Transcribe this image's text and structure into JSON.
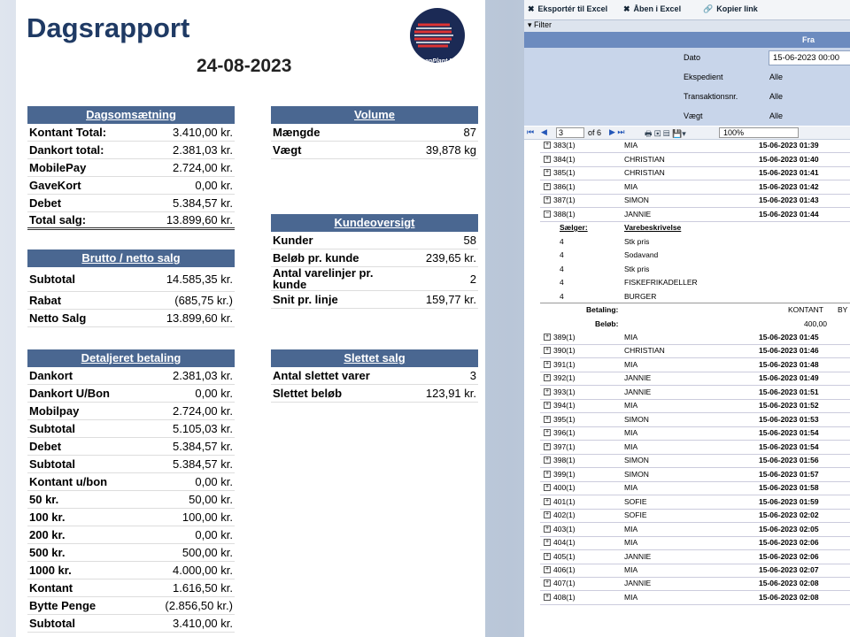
{
  "report": {
    "title": "Dagsrapport",
    "date": "24-08-2023",
    "logo_text": "ScanPlant Nd",
    "sections": [
      {
        "header": "Dagsomsætning",
        "rows": [
          [
            "Kontant Total:",
            "3.410,00 kr."
          ],
          [
            "Dankort total:",
            "2.381,03 kr."
          ],
          [
            "MobilePay",
            "2.724,00 kr."
          ],
          [
            "GaveKort",
            "0,00 kr."
          ],
          [
            "Debet",
            "5.384,57 kr."
          ],
          [
            "Total salg:",
            "13.899,60 kr."
          ]
        ]
      },
      {
        "header": "Brutto / netto salg",
        "rows": [
          [
            "Subtotal",
            "14.585,35 kr."
          ],
          [
            "Rabat",
            "(685,75 kr.)"
          ],
          [
            "Netto Salg",
            "13.899,60 kr."
          ]
        ]
      },
      {
        "header": "Detaljeret betaling",
        "rows": [
          [
            "Dankort",
            "2.381,03 kr."
          ],
          [
            "Dankort U/Bon",
            "0,00 kr."
          ],
          [
            "Mobilpay",
            "2.724,00 kr."
          ],
          [
            "Subtotal",
            "5.105,03 kr."
          ],
          [
            "Debet",
            "5.384,57 kr."
          ],
          [
            "Subtotal",
            "5.384,57 kr."
          ],
          [
            "Kontant u/bon",
            "0,00 kr."
          ],
          [
            "50 kr.",
            "50,00 kr."
          ],
          [
            "100 kr.",
            "100,00 kr."
          ],
          [
            "200 kr.",
            "0,00 kr."
          ],
          [
            "500 kr.",
            "500,00 kr."
          ],
          [
            "1000 kr.",
            "4.000,00 kr."
          ],
          [
            "Kontant",
            "1.616,50 kr."
          ],
          [
            "Bytte Penge",
            "(2.856,50 kr.)"
          ],
          [
            "Subtotal",
            "3.410,00 kr."
          ]
        ]
      },
      {
        "header": "Volume",
        "rows": [
          [
            "Mængde",
            "87"
          ],
          [
            "Vægt",
            "39,878  kg"
          ]
        ]
      },
      {
        "header": "Kundeoversigt",
        "rows": [
          [
            "Kunder",
            "58"
          ],
          [
            "Beløb pr. kunde",
            "239,65 kr."
          ],
          [
            "Antal varelinjer pr. kunde",
            "2"
          ],
          [
            "Snit pr. linje",
            "159,77 kr."
          ]
        ]
      },
      {
        "header": "Slettet salg",
        "rows": [
          [
            "Antal slettet varer",
            "3"
          ],
          [
            "Slettet beløb",
            "123,91 kr."
          ]
        ]
      }
    ]
  },
  "viewer": {
    "toolbar": [
      "Eksportér til Excel",
      "Åben i Excel",
      "Kopier link"
    ],
    "filter_label": "Filter",
    "filter_column": "Fra",
    "filters": [
      [
        "Dato",
        "15-06-2023 00:00"
      ],
      [
        "Ekspedient",
        "Alle"
      ],
      [
        "Transaktionsnr.",
        "Alle"
      ],
      [
        "Vægt",
        "Alle"
      ]
    ],
    "pager": {
      "page": "3",
      "of": "of 6",
      "zoom": "100%"
    },
    "rows_before": [
      [
        "383(1)",
        "MIA",
        "15-06-2023 01:39"
      ],
      [
        "384(1)",
        "CHRISTIAN",
        "15-06-2023 01:40"
      ],
      [
        "385(1)",
        "CHRISTIAN",
        "15-06-2023 01:41"
      ],
      [
        "386(1)",
        "MIA",
        "15-06-2023 01:42"
      ],
      [
        "387(1)",
        "SIMON",
        "15-06-2023 01:43"
      ]
    ],
    "expanded_row": [
      "388(1)",
      "JANNIE",
      "15-06-2023 01:44"
    ],
    "detail": {
      "headers": [
        "Sælger:",
        "Varebeskrivelse"
      ],
      "items": [
        [
          "4",
          "Stk pris"
        ],
        [
          "4",
          "Sodavand"
        ],
        [
          "4",
          "Stk pris"
        ],
        [
          "4",
          "FISKEFRIKADELLER"
        ],
        [
          "4",
          "BURGER"
        ]
      ],
      "payment_label": "Betaling:",
      "payment": "KONTANT",
      "payment_extra": "BY",
      "amount_label": "Beløb:",
      "amount": "400,00"
    },
    "rows_after": [
      [
        "389(1)",
        "MIA",
        "15-06-2023 01:45"
      ],
      [
        "390(1)",
        "CHRISTIAN",
        "15-06-2023 01:46"
      ],
      [
        "391(1)",
        "MIA",
        "15-06-2023 01:48"
      ],
      [
        "392(1)",
        "JANNIE",
        "15-06-2023 01:49"
      ],
      [
        "393(1)",
        "JANNIE",
        "15-06-2023 01:51"
      ],
      [
        "394(1)",
        "MIA",
        "15-06-2023 01:52"
      ],
      [
        "395(1)",
        "SIMON",
        "15-06-2023 01:53"
      ],
      [
        "396(1)",
        "MIA",
        "15-06-2023 01:54"
      ],
      [
        "397(1)",
        "MIA",
        "15-06-2023 01:54"
      ],
      [
        "398(1)",
        "SIMON",
        "15-06-2023 01:56"
      ],
      [
        "399(1)",
        "SIMON",
        "15-06-2023 01:57"
      ],
      [
        "400(1)",
        "MIA",
        "15-06-2023 01:58"
      ],
      [
        "401(1)",
        "SOFIE",
        "15-06-2023 01:59"
      ],
      [
        "402(1)",
        "SOFIE",
        "15-06-2023 02:02"
      ],
      [
        "403(1)",
        "MIA",
        "15-06-2023 02:05"
      ],
      [
        "404(1)",
        "MIA",
        "15-06-2023 02:06"
      ],
      [
        "405(1)",
        "JANNIE",
        "15-06-2023 02:06"
      ],
      [
        "406(1)",
        "MIA",
        "15-06-2023 02:07"
      ],
      [
        "407(1)",
        "JANNIE",
        "15-06-2023 02:08"
      ],
      [
        "408(1)",
        "MIA",
        "15-06-2023 02:08"
      ]
    ]
  }
}
